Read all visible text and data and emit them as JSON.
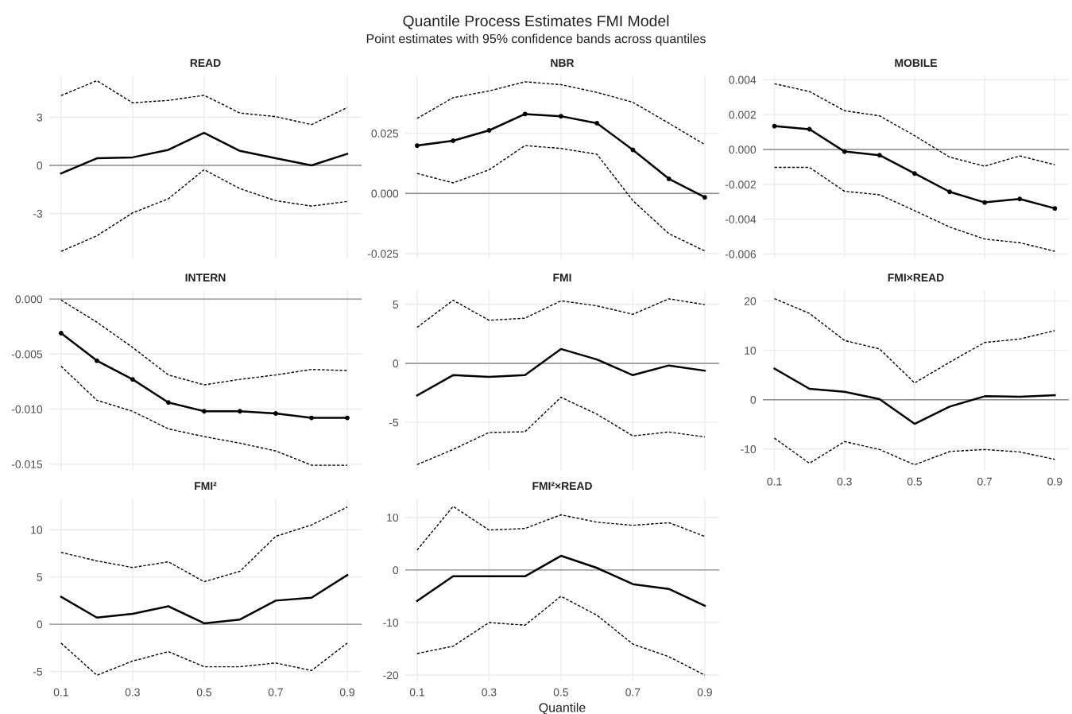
{
  "chart_data": [
    {
      "type": "other",
      "title": "Quantile Process Estimates FMI Model",
      "subtitle": "Point estimates with 95% confidence bands across quantiles"
    },
    {
      "type": "line",
      "title": "READ",
      "x": [
        0.1,
        0.2,
        0.3,
        0.4,
        0.5,
        0.6,
        0.7,
        0.8,
        0.9
      ],
      "xlim": [
        0.067,
        0.94
      ],
      "xticks": [
        0.1,
        0.3,
        0.5,
        0.7,
        0.9
      ],
      "ylim": [
        -5.8,
        5.6
      ],
      "yticks": [
        -3,
        0,
        3
      ],
      "tick_labels": "y",
      "grid": true,
      "ref_lines": [
        {
          "axis": "y",
          "value": 0,
          "color": "#8c8c8c"
        }
      ],
      "series": [
        {
          "color": "#000000",
          "values": [
            -0.5,
            0.44,
            0.5,
            0.97,
            2.03,
            0.9,
            0.45,
            0.0,
            0.72
          ]
        },
        {
          "color": "#000000",
          "line_style": "dashed",
          "values": [
            4.35,
            5.28,
            3.9,
            4.05,
            4.37,
            3.26,
            3.04,
            2.54,
            3.6
          ]
        },
        {
          "color": "#000000",
          "line_style": "dashed",
          "values": [
            -5.36,
            -4.39,
            -2.96,
            -2.08,
            -0.27,
            -1.45,
            -2.2,
            -2.54,
            -2.25
          ]
        }
      ]
    },
    {
      "type": "line",
      "title": "NBR",
      "x": [
        0.1,
        0.2,
        0.3,
        0.4,
        0.5,
        0.6,
        0.7,
        0.8,
        0.9
      ],
      "xlim": [
        0.067,
        0.94
      ],
      "xticks": [
        0.1,
        0.3,
        0.5,
        0.7,
        0.9
      ],
      "ylim": [
        -0.027,
        0.049
      ],
      "yticks": [
        {
          "value": -0.025,
          "label": "-0.025"
        },
        {
          "value": 0,
          "label": "0.000"
        },
        {
          "value": 0.025,
          "label": "0.025"
        }
      ],
      "tick_labels": "y",
      "grid": true,
      "ref_lines": [
        {
          "axis": "y",
          "value": 0,
          "color": "#8c8c8c"
        }
      ],
      "series": [
        {
          "color": "#000000",
          "marker": "circle",
          "values": [
            0.0199,
            0.0219,
            0.0262,
            0.033,
            0.0321,
            0.0292,
            0.0181,
            0.0061,
            -0.0016
          ]
        },
        {
          "color": "#000000",
          "line_style": "dashed",
          "values": [
            0.0312,
            0.0398,
            0.0426,
            0.0464,
            0.0452,
            0.042,
            0.0379,
            0.0292,
            0.0203
          ]
        },
        {
          "color": "#000000",
          "line_style": "dashed",
          "values": [
            0.0083,
            0.0044,
            0.0098,
            0.0199,
            0.0187,
            0.0163,
            -0.003,
            -0.0167,
            -0.0239
          ]
        }
      ]
    },
    {
      "type": "line",
      "title": "MOBILE",
      "x": [
        0.1,
        0.2,
        0.3,
        0.4,
        0.5,
        0.6,
        0.7,
        0.8,
        0.9
      ],
      "xlim": [
        0.067,
        0.94
      ],
      "xticks": [
        0.1,
        0.3,
        0.5,
        0.7,
        0.9
      ],
      "ylim": [
        -0.00625,
        0.00424
      ],
      "yticks": [
        {
          "value": -0.006,
          "label": "-0.006"
        },
        {
          "value": -0.004,
          "label": "-0.004"
        },
        {
          "value": -0.002,
          "label": "-0.002"
        },
        {
          "value": 0,
          "label": "0.000"
        },
        {
          "value": 0.002,
          "label": "0.002"
        },
        {
          "value": 0.004,
          "label": "0.004"
        }
      ],
      "tick_labels": "y",
      "grid": true,
      "ref_lines": [
        {
          "axis": "y",
          "value": 0,
          "color": "#8c8c8c"
        }
      ],
      "series": [
        {
          "color": "#000000",
          "marker": "circle",
          "values": [
            0.00134,
            0.00116,
            -0.00012,
            -0.00033,
            -0.00138,
            -0.00243,
            -0.00304,
            -0.00284,
            -0.00338
          ]
        },
        {
          "color": "#000000",
          "line_style": "dashed",
          "values": [
            0.00377,
            0.00332,
            0.00222,
            0.00193,
            0.00079,
            -0.00044,
            -0.00096,
            -0.00037,
            -0.00088
          ]
        },
        {
          "color": "#000000",
          "line_style": "dashed",
          "values": [
            -0.00103,
            -0.00103,
            -0.0024,
            -0.0026,
            -0.00351,
            -0.00445,
            -0.00514,
            -0.00535,
            -0.00584
          ]
        }
      ]
    },
    {
      "type": "line",
      "title": "INTERN",
      "x": [
        0.1,
        0.2,
        0.3,
        0.4,
        0.5,
        0.6,
        0.7,
        0.8,
        0.9
      ],
      "xlim": [
        0.067,
        0.94
      ],
      "xticks": [
        0.1,
        0.3,
        0.5,
        0.7,
        0.9
      ],
      "ylim": [
        -0.0156,
        0.0008
      ],
      "yticks": [
        {
          "value": -0.015,
          "label": "-0.015"
        },
        {
          "value": -0.01,
          "label": "-0.010"
        },
        {
          "value": -0.005,
          "label": "-0.005"
        },
        {
          "value": 0,
          "label": "0.000"
        }
      ],
      "tick_labels": "y",
      "grid": true,
      "ref_lines": [
        {
          "axis": "y",
          "value": 0,
          "color": "#8c8c8c"
        }
      ],
      "series": [
        {
          "color": "#000000",
          "marker": "circle",
          "values": [
            -0.0031,
            -0.0056,
            -0.0073,
            -0.0094,
            -0.0102,
            -0.0102,
            -0.0104,
            -0.0108,
            -0.0108
          ]
        },
        {
          "color": "#000000",
          "line_style": "dashed",
          "values": [
            -0.0001,
            -0.0021,
            -0.0044,
            -0.0069,
            -0.0078,
            -0.0073,
            -0.0069,
            -0.0064,
            -0.0065
          ]
        },
        {
          "color": "#000000",
          "line_style": "dashed",
          "values": [
            -0.0061,
            -0.0092,
            -0.0102,
            -0.0118,
            -0.0125,
            -0.0131,
            -0.0138,
            -0.0151,
            -0.0151
          ]
        }
      ]
    },
    {
      "type": "line",
      "title": "FMI",
      "x": [
        0.1,
        0.2,
        0.3,
        0.4,
        0.5,
        0.6,
        0.7,
        0.8,
        0.9
      ],
      "xlim": [
        0.067,
        0.94
      ],
      "xticks": [
        0.1,
        0.3,
        0.5,
        0.7,
        0.9
      ],
      "ylim": [
        -9.1,
        6.2
      ],
      "yticks": [
        -5,
        0,
        5
      ],
      "tick_labels": "y",
      "grid": true,
      "ref_lines": [
        {
          "axis": "y",
          "value": 0,
          "color": "#8c8c8c"
        }
      ],
      "series": [
        {
          "color": "#000000",
          "values": [
            -2.72,
            -1.0,
            -1.15,
            -1.0,
            1.22,
            0.33,
            -1.0,
            -0.18,
            -0.62
          ]
        },
        {
          "color": "#000000",
          "line_style": "dashed",
          "values": [
            3.05,
            5.35,
            3.65,
            3.83,
            5.3,
            4.88,
            4.16,
            5.47,
            4.98
          ]
        },
        {
          "color": "#000000",
          "line_style": "dashed",
          "values": [
            -8.58,
            -7.3,
            -5.86,
            -5.8,
            -2.88,
            -4.31,
            -6.15,
            -5.82,
            -6.24
          ]
        }
      ]
    },
    {
      "type": "line",
      "title": "FMI×READ",
      "x": [
        0.1,
        0.2,
        0.3,
        0.4,
        0.5,
        0.6,
        0.7,
        0.8,
        0.9
      ],
      "xlim": [
        0.067,
        0.94
      ],
      "xticks": [
        0.1,
        0.3,
        0.5,
        0.7,
        0.9
      ],
      "ylim": [
        -14.4,
        22.2
      ],
      "yticks": [
        -10,
        0,
        10,
        20
      ],
      "grid": true,
      "ref_lines": [
        {
          "axis": "y",
          "value": 0,
          "color": "#8c8c8c"
        }
      ],
      "series": [
        {
          "color": "#000000",
          "values": [
            6.3,
            2.2,
            1.6,
            0.1,
            -4.9,
            -1.4,
            0.7,
            0.6,
            0.9
          ]
        },
        {
          "color": "#000000",
          "line_style": "dashed",
          "values": [
            20.5,
            17.5,
            12.0,
            10.3,
            3.4,
            7.6,
            11.6,
            12.3,
            14.0
          ]
        },
        {
          "color": "#000000",
          "line_style": "dashed",
          "values": [
            -7.8,
            -12.9,
            -8.5,
            -10.1,
            -13.2,
            -10.5,
            -10.1,
            -10.6,
            -12.1
          ]
        }
      ]
    },
    {
      "type": "line",
      "title": "FMI²",
      "x": [
        0.1,
        0.2,
        0.3,
        0.4,
        0.5,
        0.6,
        0.7,
        0.8,
        0.9
      ],
      "xlim": [
        0.067,
        0.94
      ],
      "xticks": [
        0.1,
        0.3,
        0.5,
        0.7,
        0.9
      ],
      "ylim": [
        -6.05,
        13.3
      ],
      "yticks": [
        -5,
        0,
        5,
        10
      ],
      "grid": true,
      "ref_lines": [
        {
          "axis": "y",
          "value": 0,
          "color": "#8c8c8c"
        }
      ],
      "series": [
        {
          "color": "#000000",
          "values": [
            2.9,
            0.7,
            1.1,
            1.9,
            0.1,
            0.5,
            2.5,
            2.8,
            5.2
          ]
        },
        {
          "color": "#000000",
          "line_style": "dashed",
          "values": [
            7.6,
            6.7,
            6.0,
            6.6,
            4.5,
            5.6,
            9.3,
            10.5,
            12.4
          ]
        },
        {
          "color": "#000000",
          "line_style": "dashed",
          "values": [
            -2.0,
            -5.4,
            -3.9,
            -2.9,
            -4.5,
            -4.5,
            -4.1,
            -4.9,
            -2.0
          ]
        }
      ]
    },
    {
      "type": "line",
      "title": "FMI²×READ",
      "xlabel": "Quantile",
      "x": [
        0.1,
        0.2,
        0.3,
        0.4,
        0.5,
        0.6,
        0.7,
        0.8,
        0.9
      ],
      "xlim": [
        0.067,
        0.94
      ],
      "xticks": [
        0.1,
        0.3,
        0.5,
        0.7,
        0.9
      ],
      "ylim": [
        -21.2,
        13.6
      ],
      "yticks": [
        -20,
        -10,
        0,
        10
      ],
      "grid": true,
      "ref_lines": [
        {
          "axis": "y",
          "value": 0,
          "color": "#8c8c8c"
        }
      ],
      "series": [
        {
          "color": "#000000",
          "values": [
            -5.9,
            -1.2,
            -1.2,
            -1.2,
            2.7,
            0.4,
            -2.7,
            -3.6,
            -6.8
          ]
        },
        {
          "color": "#000000",
          "line_style": "dashed",
          "values": [
            3.8,
            12.1,
            7.6,
            7.9,
            10.5,
            9.1,
            8.5,
            9.0,
            6.4
          ]
        },
        {
          "color": "#000000",
          "line_style": "dashed",
          "values": [
            -15.9,
            -14.5,
            -10.0,
            -10.5,
            -5.0,
            -8.6,
            -14.1,
            -16.5,
            -20.0
          ]
        }
      ]
    }
  ]
}
